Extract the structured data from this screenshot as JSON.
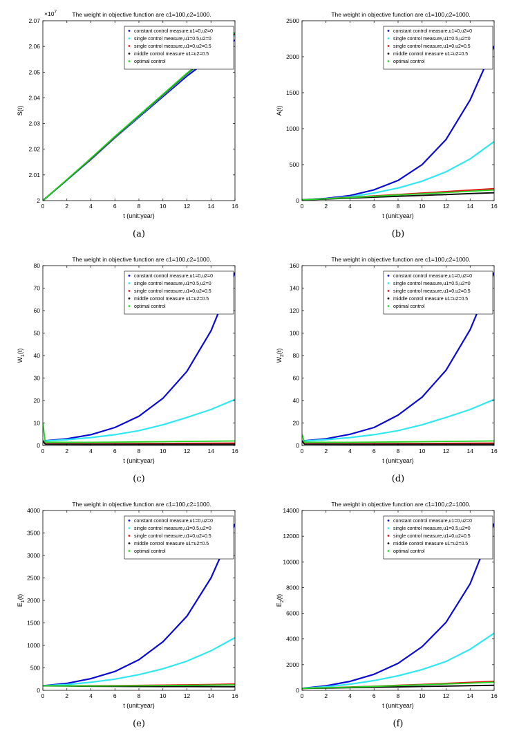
{
  "legend_labels": [
    "constant control measure,u1=0,u2=0",
    "single control measure,u1=0.5,u2=0",
    "single control measure,u1=0,u2=0.5",
    "middle control measure u1=u2=0.5",
    "optimal control"
  ],
  "series_colors": [
    "#0a0ad2",
    "#32e8f0",
    "#e01818",
    "#101010",
    "#22d822"
  ],
  "chart_data": [
    {
      "type": "line",
      "panel_label": "(a)",
      "title": "The weight in objective function are c1=100,c2=1000.",
      "xlabel": "t (unit:year)",
      "ylabel": "S(t)",
      "ylabel_sub": "",
      "y_exponent": "×10",
      "y_exponent_power": "7",
      "xlim": [
        0,
        16
      ],
      "ylim": [
        2.0,
        2.07
      ],
      "xticks": [
        0,
        2,
        4,
        6,
        8,
        10,
        12,
        14,
        16
      ],
      "yticks": [
        2.0,
        2.01,
        2.02,
        2.03,
        2.04,
        2.05,
        2.06,
        2.07
      ],
      "ytick_labels": [
        "2",
        "2.01",
        "2.02",
        "2.03",
        "2.04",
        "2.05",
        "2.06",
        "2.07"
      ],
      "x": [
        0,
        2,
        4,
        6,
        8,
        10,
        12,
        14,
        16
      ],
      "series": [
        {
          "name": "constant control measure,u1=0,u2=0",
          "values": [
            2.0,
            2.008,
            2.016,
            2.0245,
            2.0325,
            2.0405,
            2.0485,
            2.0555,
            2.0625
          ]
        },
        {
          "name": "single control measure,u1=0.5,u2=0",
          "values": [
            2.0,
            2.008,
            2.0162,
            2.0247,
            2.0328,
            2.041,
            2.0492,
            2.0567,
            2.0645
          ]
        },
        {
          "name": "single control measure,u1=0,u2=0.5",
          "values": [
            2.0,
            2.0081,
            2.0163,
            2.0248,
            2.033,
            2.0412,
            2.0494,
            2.057,
            2.065
          ]
        },
        {
          "name": "middle control measure u1=u2=0.5",
          "values": [
            2.0,
            2.0081,
            2.0164,
            2.0249,
            2.0331,
            2.0413,
            2.0495,
            2.0572,
            2.0652
          ]
        },
        {
          "name": "optimal control",
          "values": [
            2.0,
            2.0082,
            2.0165,
            2.025,
            2.0332,
            2.0414,
            2.0496,
            2.0574,
            2.0655
          ]
        }
      ]
    },
    {
      "type": "line",
      "panel_label": "(b)",
      "title": "The weight in objective function are c1=100,c2=1000.",
      "xlabel": "t (unit:year)",
      "ylabel": "A(t)",
      "ylabel_sub": "",
      "y_exponent": "",
      "y_exponent_power": "",
      "xlim": [
        0,
        16
      ],
      "ylim": [
        0,
        2500
      ],
      "xticks": [
        0,
        2,
        4,
        6,
        8,
        10,
        12,
        14,
        16
      ],
      "yticks": [
        0,
        500,
        1000,
        1500,
        2000,
        2500
      ],
      "ytick_labels": [
        "0",
        "500",
        "1000",
        "1500",
        "2000",
        "2500"
      ],
      "x": [
        0,
        2,
        4,
        6,
        8,
        10,
        12,
        14,
        16
      ],
      "series": [
        {
          "name": "constant control measure,u1=0,u2=0",
          "values": [
            10,
            30,
            70,
            150,
            280,
            500,
            850,
            1400,
            2150
          ]
        },
        {
          "name": "single control measure,u1=0.5,u2=0",
          "values": [
            10,
            25,
            55,
            105,
            175,
            270,
            400,
            580,
            820
          ]
        },
        {
          "name": "single control measure,u1=0,u2=0.5",
          "values": [
            10,
            25,
            45,
            65,
            85,
            105,
            125,
            145,
            165
          ]
        },
        {
          "name": "middle control measure u1=u2=0.5",
          "values": [
            10,
            22,
            35,
            48,
            60,
            72,
            85,
            97,
            110
          ]
        },
        {
          "name": "optimal control",
          "values": [
            10,
            25,
            42,
            60,
            78,
            95,
            112,
            130,
            148
          ]
        }
      ]
    },
    {
      "type": "line",
      "panel_label": "(c)",
      "title": "The weight in objective function are c1=100,c2=1000.",
      "xlabel": "t (unit:year)",
      "ylabel": "W",
      "ylabel_sub": "1",
      "ylabel_suffix": "(t)",
      "y_exponent": "",
      "y_exponent_power": "",
      "xlim": [
        0,
        16
      ],
      "ylim": [
        0,
        80
      ],
      "xticks": [
        0,
        2,
        4,
        6,
        8,
        10,
        12,
        14,
        16
      ],
      "yticks": [
        0,
        10,
        20,
        30,
        40,
        50,
        60,
        70,
        80
      ],
      "ytick_labels": [
        "0",
        "10",
        "20",
        "30",
        "40",
        "50",
        "60",
        "70",
        "80"
      ],
      "x": [
        0,
        0.2,
        2,
        4,
        6,
        8,
        10,
        12,
        14,
        16
      ],
      "series": [
        {
          "name": "constant control measure,u1=0,u2=0",
          "values": [
            2,
            2.1,
            3,
            4.8,
            8,
            13,
            21,
            33,
            51,
            77
          ]
        },
        {
          "name": "single control measure,u1=0.5,u2=0",
          "values": [
            2,
            2,
            2.6,
            3.5,
            4.8,
            6.6,
            9.2,
            12.5,
            16,
            20.5
          ]
        },
        {
          "name": "single control measure,u1=0,u2=0.5",
          "values": [
            2,
            0.8,
            0.75,
            0.75,
            0.8,
            0.85,
            0.9,
            0.95,
            1.0,
            1.05
          ]
        },
        {
          "name": "middle control measure u1=u2=0.5",
          "values": [
            2,
            0.6,
            0.55,
            0.5,
            0.5,
            0.5,
            0.5,
            0.5,
            0.5,
            0.5
          ]
        },
        {
          "name": "optimal control",
          "values": [
            10,
            1.5,
            1.4,
            1.4,
            1.5,
            1.6,
            1.7,
            1.8,
            1.9,
            2.0
          ]
        }
      ]
    },
    {
      "type": "line",
      "panel_label": "(d)",
      "title": "The weight in objective function are c1=100,c2=1000.",
      "xlabel": "t (unit:year)",
      "ylabel": "W",
      "ylabel_sub": "2",
      "ylabel_suffix": "(t)",
      "y_exponent": "",
      "y_exponent_power": "",
      "xlim": [
        0,
        16
      ],
      "ylim": [
        0,
        160
      ],
      "xticks": [
        0,
        2,
        4,
        6,
        8,
        10,
        12,
        14,
        16
      ],
      "yticks": [
        0,
        20,
        40,
        60,
        80,
        100,
        120,
        140,
        160
      ],
      "ytick_labels": [
        "0",
        "20",
        "40",
        "60",
        "80",
        "100",
        "120",
        "140",
        "160"
      ],
      "x": [
        0,
        0.2,
        2,
        4,
        6,
        8,
        10,
        12,
        14,
        16
      ],
      "series": [
        {
          "name": "constant control measure,u1=0,u2=0",
          "values": [
            4,
            4.2,
            6,
            10,
            16,
            27,
            43,
            67,
            103,
            154
          ]
        },
        {
          "name": "single control measure,u1=0.5,u2=0",
          "values": [
            4,
            4,
            5.2,
            7,
            9.6,
            13.2,
            18.4,
            25,
            32,
            41
          ]
        },
        {
          "name": "single control measure,u1=0,u2=0.5",
          "values": [
            4,
            1.6,
            1.5,
            1.5,
            1.6,
            1.7,
            1.8,
            1.9,
            2.0,
            2.1
          ]
        },
        {
          "name": "middle control measure u1=u2=0.5",
          "values": [
            4,
            1.2,
            1.1,
            1.0,
            1.0,
            1.0,
            1.0,
            1.0,
            1.0,
            1.0
          ]
        },
        {
          "name": "optimal control",
          "values": [
            10,
            3,
            2.8,
            2.8,
            3,
            3.2,
            3.4,
            3.6,
            3.8,
            4.0
          ]
        }
      ]
    },
    {
      "type": "line",
      "panel_label": "(e)",
      "title": "The weight in objective function are c1=100,c2=1000.",
      "xlabel": "t (unit:year)",
      "ylabel": "E",
      "ylabel_sub": "1",
      "ylabel_suffix": "(t)",
      "y_exponent": "",
      "y_exponent_power": "",
      "xlim": [
        0,
        16
      ],
      "ylim": [
        0,
        4000
      ],
      "xticks": [
        0,
        2,
        4,
        6,
        8,
        10,
        12,
        14,
        16
      ],
      "yticks": [
        0,
        500,
        1000,
        1500,
        2000,
        2500,
        3000,
        3500,
        4000
      ],
      "ytick_labels": [
        "0",
        "500",
        "1000",
        "1500",
        "2000",
        "2500",
        "3000",
        "3500",
        "4000"
      ],
      "x": [
        0,
        2,
        4,
        6,
        8,
        10,
        12,
        14,
        16
      ],
      "series": [
        {
          "name": "constant control measure,u1=0,u2=0",
          "values": [
            100,
            155,
            260,
            420,
            680,
            1080,
            1650,
            2500,
            3700
          ]
        },
        {
          "name": "single control measure,u1=0.5,u2=0",
          "values": [
            100,
            130,
            180,
            250,
            350,
            480,
            650,
            880,
            1170
          ]
        },
        {
          "name": "single control measure,u1=0,u2=0.5",
          "values": [
            100,
            100,
            102,
            105,
            110,
            115,
            122,
            130,
            140
          ]
        },
        {
          "name": "middle control measure u1=u2=0.5",
          "values": [
            100,
            95,
            90,
            88,
            86,
            85,
            84,
            83,
            82
          ]
        },
        {
          "name": "optimal control",
          "values": [
            100,
            98,
            97,
            99,
            102,
            106,
            111,
            117,
            123
          ]
        }
      ]
    },
    {
      "type": "line",
      "panel_label": "(f)",
      "title": "The weight in objective function are c1=100,c2=1000.",
      "xlabel": "t (unit:year)",
      "ylabel": "E",
      "ylabel_sub": "2",
      "ylabel_suffix": "(t)",
      "y_exponent": "",
      "y_exponent_power": "",
      "xlim": [
        0,
        16
      ],
      "ylim": [
        0,
        14000
      ],
      "xticks": [
        0,
        2,
        4,
        6,
        8,
        10,
        12,
        14,
        16
      ],
      "yticks": [
        0,
        2000,
        4000,
        6000,
        8000,
        10000,
        12000,
        14000
      ],
      "ytick_labels": [
        "0",
        "2000",
        "4000",
        "6000",
        "8000",
        "10000",
        "12000",
        "14000"
      ],
      "x": [
        0,
        2,
        4,
        6,
        8,
        10,
        12,
        14,
        16
      ],
      "series": [
        {
          "name": "constant control measure,u1=0,u2=0",
          "values": [
            150,
            350,
            700,
            1250,
            2100,
            3400,
            5300,
            8300,
            13000
          ]
        },
        {
          "name": "single control measure,u1=0.5,u2=0",
          "values": [
            150,
            280,
            480,
            760,
            1130,
            1620,
            2250,
            3200,
            4450
          ]
        },
        {
          "name": "single control measure,u1=0,u2=0.5",
          "values": [
            150,
            200,
            260,
            320,
            390,
            460,
            540,
            620,
            700
          ]
        },
        {
          "name": "middle control measure u1=u2=0.5",
          "values": [
            150,
            180,
            210,
            240,
            270,
            300,
            330,
            360,
            390
          ]
        },
        {
          "name": "optimal control",
          "values": [
            150,
            195,
            250,
            305,
            365,
            430,
            495,
            560,
            630
          ]
        }
      ]
    }
  ]
}
